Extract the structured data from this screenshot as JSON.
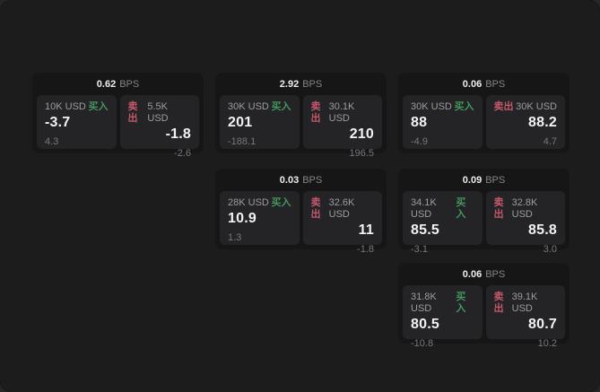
{
  "labels": {
    "bps_unit": "BPS",
    "buy": "买入",
    "sell": "卖出"
  },
  "colors": {
    "buy": "#44965d",
    "sell": "#c4586a",
    "window_background": "#1c1c1d",
    "card_background": "#161617",
    "panel_background": "#242427"
  },
  "cards": [
    {
      "bps": "0.62",
      "buy_amount": "10K USD",
      "buy_value": "-3.7",
      "buy_sub": "4.3",
      "sell_amount": "5.5K USD",
      "sell_value": "-1.8",
      "sell_sub": "-2.6"
    },
    {
      "bps": "2.92",
      "buy_amount": "30K USD",
      "buy_value": "201",
      "buy_sub": "-188.1",
      "sell_amount": "30.1K USD",
      "sell_value": "210",
      "sell_sub": "196.5"
    },
    {
      "bps": "0.06",
      "buy_amount": "30K USD",
      "buy_value": "88",
      "buy_sub": "-4.9",
      "sell_amount": "30K USD",
      "sell_value": "88.2",
      "sell_sub": "4.7"
    },
    {
      "bps": "0.03",
      "buy_amount": "28K USD",
      "buy_value": "10.9",
      "buy_sub": "1.3",
      "sell_amount": "32.6K USD",
      "sell_value": "11",
      "sell_sub": "-1.8"
    },
    {
      "bps": "0.09",
      "buy_amount": "34.1K USD",
      "buy_value": "85.5",
      "buy_sub": "-3.1",
      "sell_amount": "32.8K USD",
      "sell_value": "85.8",
      "sell_sub": "3.0"
    },
    {
      "bps": "0.06",
      "buy_amount": "31.8K USD",
      "buy_value": "80.5",
      "buy_sub": "-10.8",
      "sell_amount": "39.1K USD",
      "sell_value": "80.7",
      "sell_sub": "10.2"
    }
  ]
}
